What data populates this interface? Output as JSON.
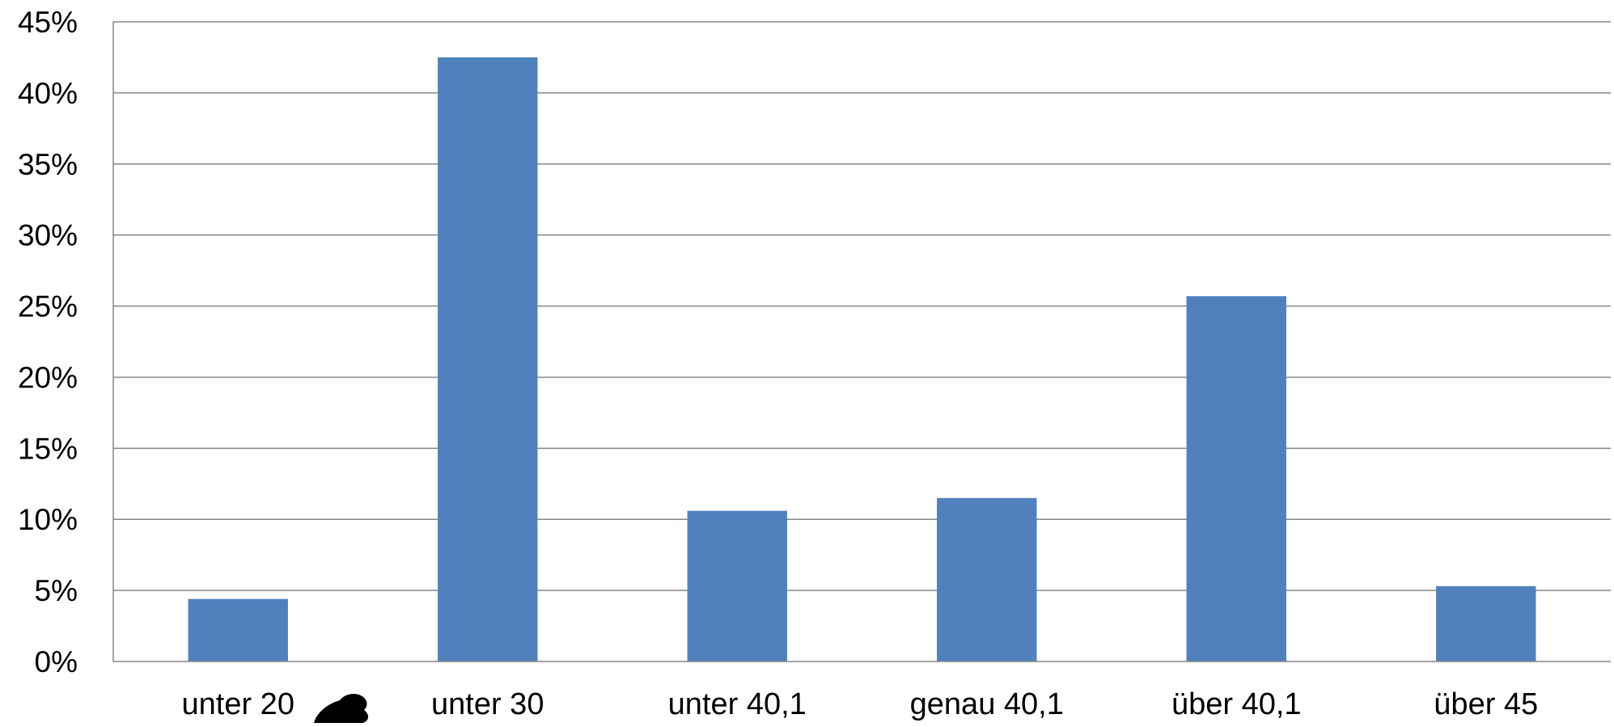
{
  "chart_data": {
    "type": "bar",
    "title": "",
    "xlabel": "",
    "ylabel": "",
    "categories": [
      "unter 20",
      "unter 30",
      "unter 40,1",
      "genau 40,1",
      "über 40,1",
      "über 45"
    ],
    "series": [
      {
        "values": [
          4.4,
          42.5,
          10.6,
          11.5,
          25.7,
          5.3
        ]
      }
    ],
    "ylim": [
      0,
      45
    ],
    "yticks": [
      0,
      5,
      10,
      15,
      20,
      25,
      30,
      35,
      40,
      45
    ],
    "ytick_labels": [
      "0%",
      "5%",
      "10%",
      "15%",
      "20%",
      "25%",
      "30%",
      "35%",
      "40%",
      "45%"
    ],
    "grid": true,
    "legend": "none",
    "colors": {
      "bar": "#4f81bd",
      "grid": "#868686",
      "text": "#000000"
    },
    "annotations": [
      {
        "icon": "beaver-silhouette-icon",
        "near_category": "unter 20"
      }
    ]
  }
}
